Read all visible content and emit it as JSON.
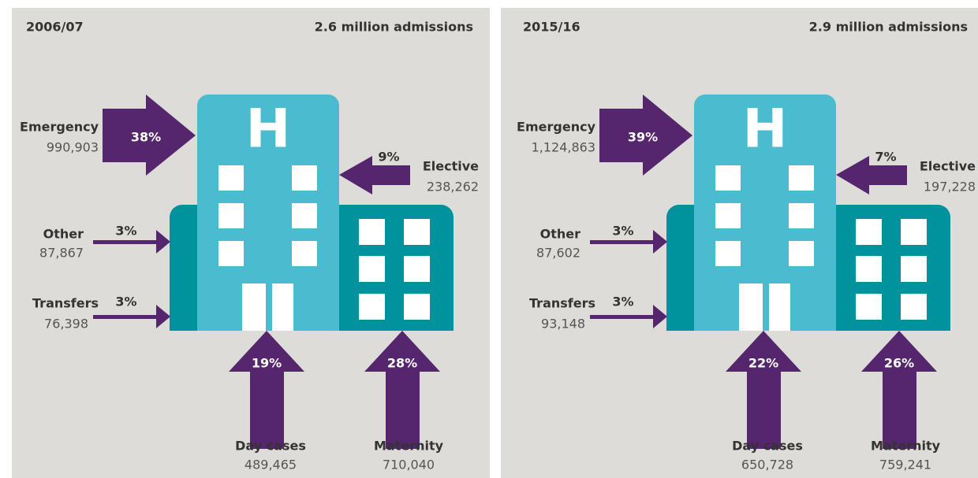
{
  "panels": [
    {
      "year": "2006/07",
      "total": "2.6 million admissions",
      "flows": [
        {
          "name": "Emergency",
          "share": "38%",
          "count": "990,903"
        },
        {
          "name": "Elective",
          "share": "9%",
          "count": "238,262"
        },
        {
          "name": "Other",
          "share": "3%",
          "count": "87,867"
        },
        {
          "name": "Transfers",
          "share": "3%",
          "count": "76,398"
        },
        {
          "name": "Day cases",
          "share": "19%",
          "count": "489,465"
        },
        {
          "name": "Maternity",
          "share": "28%",
          "count": "710,040"
        }
      ]
    },
    {
      "year": "2015/16",
      "total": "2.9 million admissions",
      "flows": [
        {
          "name": "Emergency",
          "share": "39%",
          "count": "1,124,863"
        },
        {
          "name": "Elective",
          "share": "7%",
          "count": "197,228"
        },
        {
          "name": "Other",
          "share": "3%",
          "count": "87,602"
        },
        {
          "name": "Transfers",
          "share": "3%",
          "count": "93,148"
        },
        {
          "name": "Day cases",
          "share": "22%",
          "count": "650,728"
        },
        {
          "name": "Maternity",
          "share": "26%",
          "count": "759,241"
        }
      ]
    }
  ]
}
